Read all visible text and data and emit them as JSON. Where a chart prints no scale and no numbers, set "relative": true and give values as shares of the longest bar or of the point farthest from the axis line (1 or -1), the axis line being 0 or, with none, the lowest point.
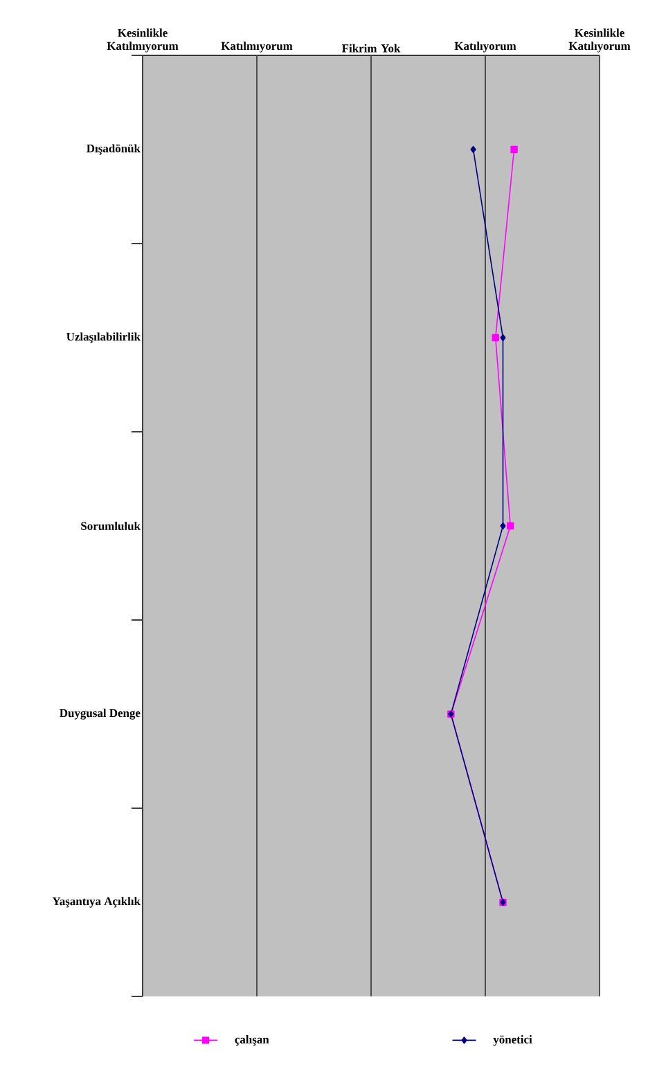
{
  "chart_data": {
    "type": "line",
    "orientation": "horizontal",
    "relative": true,
    "categories": [
      "Dışadönük",
      "Uzlaşılabilirlik",
      "Sorumluluk",
      "Duygusal Denge",
      "Yaşantıya Açıklık"
    ],
    "annotations": [
      "Kesinlikle Katılmıyorum",
      "Katılmıyorum",
      "Fikrim Yok",
      "Katılıyorum",
      "Kesinlikle Katılıyorum"
    ],
    "legend": "bottom",
    "series": [
      {
        "name": "çalışan",
        "color": "#ff00ff",
        "marker": "square",
        "values": [
          1,
          0.95,
          0.99,
          0.83,
          0.97
        ]
      },
      {
        "name": "yönetici",
        "color": "#000080",
        "marker": "diamond",
        "values": [
          0.89,
          0.97,
          0.97,
          0.83,
          0.97
        ]
      }
    ]
  }
}
